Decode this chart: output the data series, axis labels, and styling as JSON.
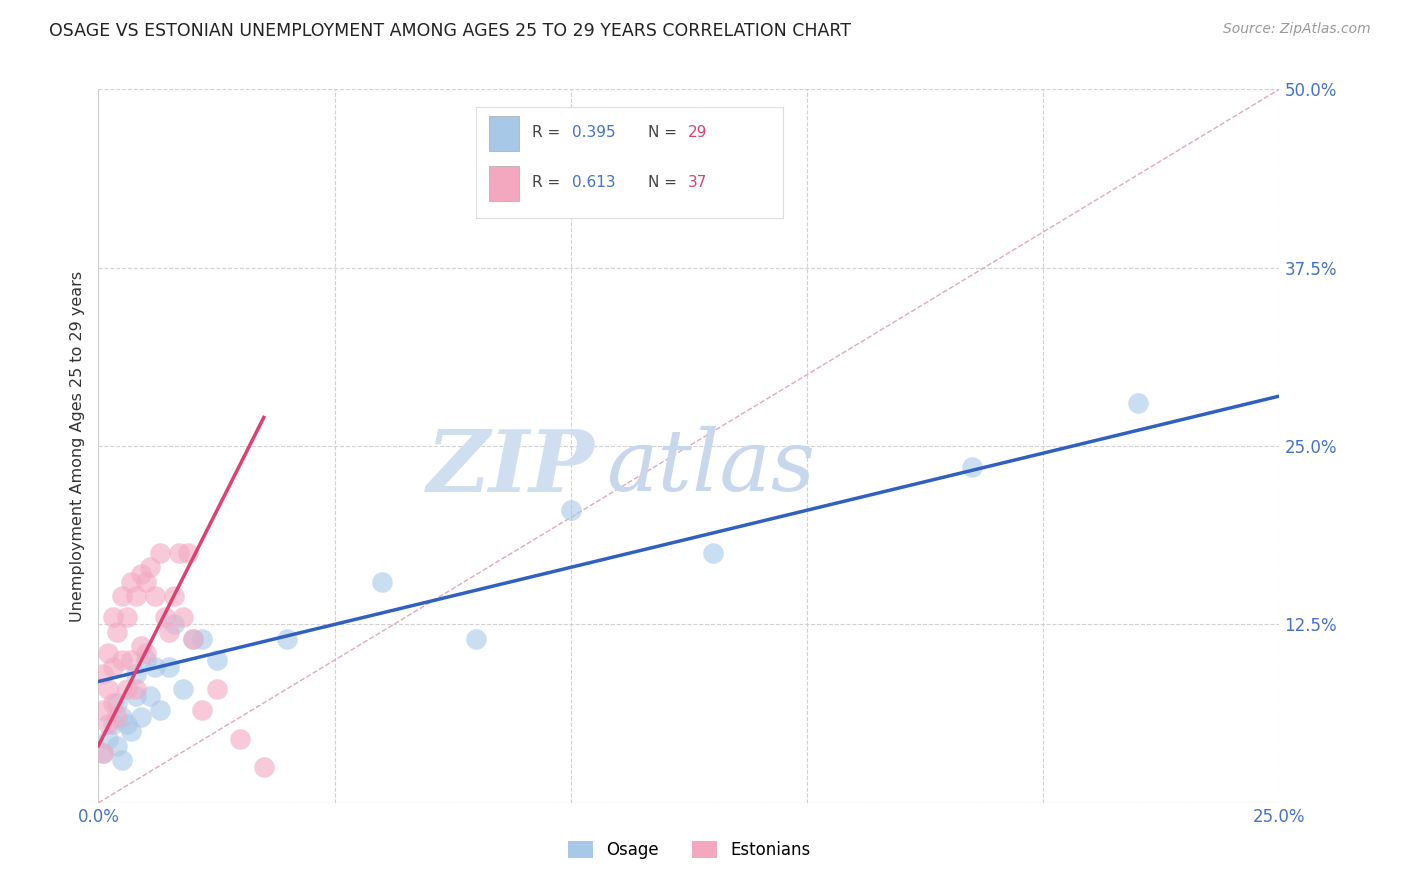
{
  "title": "OSAGE VS ESTONIAN UNEMPLOYMENT AMONG AGES 25 TO 29 YEARS CORRELATION CHART",
  "source": "Source: ZipAtlas.com",
  "ylabel": "Unemployment Among Ages 25 to 29 years",
  "xlim": [
    0,
    0.25
  ],
  "ylim": [
    0,
    0.5
  ],
  "xticks": [
    0.0,
    0.05,
    0.1,
    0.15,
    0.2,
    0.25
  ],
  "xtick_labels_show": [
    "0.0%",
    "",
    "",
    "",
    "",
    "25.0%"
  ],
  "yticks": [
    0.0,
    0.125,
    0.25,
    0.375,
    0.5
  ],
  "ytick_labels": [
    "",
    "12.5%",
    "25.0%",
    "37.5%",
    "50.0%"
  ],
  "legend_r1": "0.395",
  "legend_n1": "29",
  "legend_r2": "0.613",
  "legend_n2": "37",
  "legend_label1": "Osage",
  "legend_label2": "Estonians",
  "osage_color": "#a8c8e8",
  "estonian_color": "#f4a8c0",
  "osage_line_color": "#3060c0",
  "estonian_line_color": "#e04070",
  "ref_line_color": "#e0a0b0",
  "watermark_zip": "ZIP",
  "watermark_atlas": "atlas",
  "osage_x": [
    0.001,
    0.002,
    0.003,
    0.004,
    0.004,
    0.005,
    0.005,
    0.006,
    0.007,
    0.008,
    0.008,
    0.009,
    0.01,
    0.011,
    0.012,
    0.013,
    0.015,
    0.016,
    0.018,
    0.02,
    0.022,
    0.025,
    0.04,
    0.06,
    0.08,
    0.1,
    0.13,
    0.185,
    0.22
  ],
  "osage_y": [
    0.035,
    0.045,
    0.055,
    0.04,
    0.07,
    0.06,
    0.03,
    0.055,
    0.05,
    0.075,
    0.09,
    0.06,
    0.1,
    0.075,
    0.095,
    0.065,
    0.095,
    0.125,
    0.08,
    0.115,
    0.115,
    0.1,
    0.115,
    0.155,
    0.115,
    0.205,
    0.175,
    0.235,
    0.28
  ],
  "estonian_x": [
    0.001,
    0.001,
    0.001,
    0.002,
    0.002,
    0.002,
    0.003,
    0.003,
    0.003,
    0.004,
    0.004,
    0.005,
    0.005,
    0.006,
    0.006,
    0.007,
    0.007,
    0.008,
    0.008,
    0.009,
    0.009,
    0.01,
    0.01,
    0.011,
    0.012,
    0.013,
    0.014,
    0.015,
    0.016,
    0.017,
    0.018,
    0.019,
    0.02,
    0.022,
    0.025,
    0.03,
    0.035
  ],
  "estonian_y": [
    0.035,
    0.065,
    0.09,
    0.055,
    0.08,
    0.105,
    0.07,
    0.095,
    0.13,
    0.06,
    0.12,
    0.145,
    0.1,
    0.08,
    0.13,
    0.155,
    0.1,
    0.08,
    0.145,
    0.11,
    0.16,
    0.105,
    0.155,
    0.165,
    0.145,
    0.175,
    0.13,
    0.12,
    0.145,
    0.175,
    0.13,
    0.175,
    0.115,
    0.065,
    0.08,
    0.045,
    0.025
  ],
  "osage_trendline_x": [
    0.0,
    0.25
  ],
  "osage_trendline_y": [
    0.085,
    0.285
  ],
  "estonian_trendline_x": [
    0.0,
    0.035
  ],
  "estonian_trendline_y": [
    0.04,
    0.27
  ]
}
